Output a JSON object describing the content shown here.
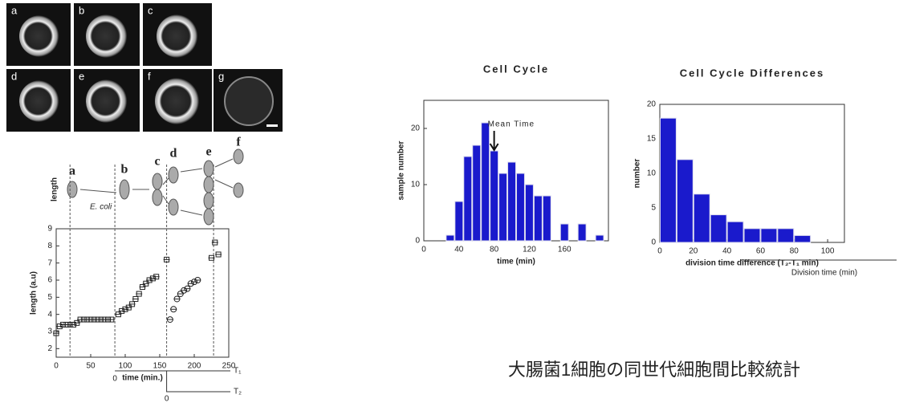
{
  "micrographs": {
    "labels": [
      "a",
      "b",
      "c",
      "d",
      "e",
      "f",
      "g"
    ]
  },
  "diagram": {
    "labels": [
      "a",
      "b",
      "c",
      "d",
      "e",
      "f"
    ],
    "length": "length",
    "organism": "E. coli"
  },
  "caption": "大腸菌1細胞の同世代細胞間比較統計",
  "chart_data": [
    {
      "type": "scatter",
      "xlabel": "time (min.)",
      "ylabel": "length (a.u)",
      "xlim": [
        0,
        250
      ],
      "ylim": [
        1.5,
        9
      ],
      "xticks": [
        0,
        50,
        100,
        150,
        200,
        250
      ],
      "yticks": [
        2,
        3,
        4,
        5,
        6,
        7,
        8,
        9
      ],
      "color": "#222222",
      "series": [
        {
          "marker": "square",
          "x": [
            0,
            5,
            10,
            15,
            20,
            25,
            30,
            35,
            40,
            45,
            50,
            55,
            60,
            65,
            70,
            75,
            80,
            90,
            95,
            100,
            105,
            110,
            115,
            120,
            125,
            130,
            135,
            140,
            145,
            160,
            225,
            230,
            235
          ],
          "y": [
            2.9,
            3.3,
            3.4,
            3.4,
            3.4,
            3.4,
            3.5,
            3.7,
            3.7,
            3.7,
            3.7,
            3.7,
            3.7,
            3.7,
            3.7,
            3.7,
            3.7,
            4.0,
            4.2,
            4.3,
            4.4,
            4.6,
            4.9,
            5.2,
            5.6,
            5.8,
            6.0,
            6.1,
            6.2,
            7.2,
            7.3,
            8.2,
            7.5
          ]
        },
        {
          "marker": "circle",
          "x": [
            165,
            170,
            175,
            180,
            185,
            190,
            195,
            200,
            205
          ],
          "y": [
            3.7,
            4.3,
            4.9,
            5.2,
            5.4,
            5.5,
            5.8,
            5.9,
            6.0
          ]
        }
      ],
      "division_times": [
        20,
        85,
        160,
        228
      ],
      "annotations": {
        "t1": "T₁",
        "t2": "T₂",
        "zero": "0"
      }
    },
    {
      "type": "histogram",
      "title": "Cell Cycle",
      "xlabel": "time (min)",
      "ylabel": "sample number",
      "bins": [
        25,
        35,
        45,
        55,
        65,
        75,
        85,
        95,
        105,
        115,
        125,
        135,
        145,
        155,
        165,
        175,
        185,
        195,
        205
      ],
      "values": [
        1,
        7,
        15,
        17,
        21,
        16,
        12,
        14,
        12,
        10,
        8,
        8,
        0,
        3,
        0,
        3,
        0,
        1
      ],
      "color": "#1a1acc",
      "xlim": [
        0,
        210
      ],
      "ylim": [
        0,
        25
      ],
      "xticks": [
        0,
        40,
        80,
        120,
        160
      ],
      "yticks": [
        0,
        10,
        20
      ],
      "annotation": "Mean Time",
      "annotation_x": 80
    },
    {
      "type": "histogram",
      "title": "Cell Cycle Differences",
      "xlabel": "division time difference (T₂-T₁ min)",
      "ylabel": "number",
      "bins": [
        0,
        10,
        20,
        30,
        40,
        50,
        60,
        70,
        80,
        90
      ],
      "values": [
        18,
        12,
        7,
        4,
        3,
        2,
        2,
        2,
        1
      ],
      "color": "#1a1acc",
      "xlim": [
        0,
        110
      ],
      "ylim": [
        0,
        20
      ],
      "xticks": [
        0,
        20,
        40,
        60,
        80,
        100
      ],
      "yticks": [
        0,
        5,
        10,
        15,
        20
      ],
      "subaxis_label": "Division time (min)"
    }
  ]
}
